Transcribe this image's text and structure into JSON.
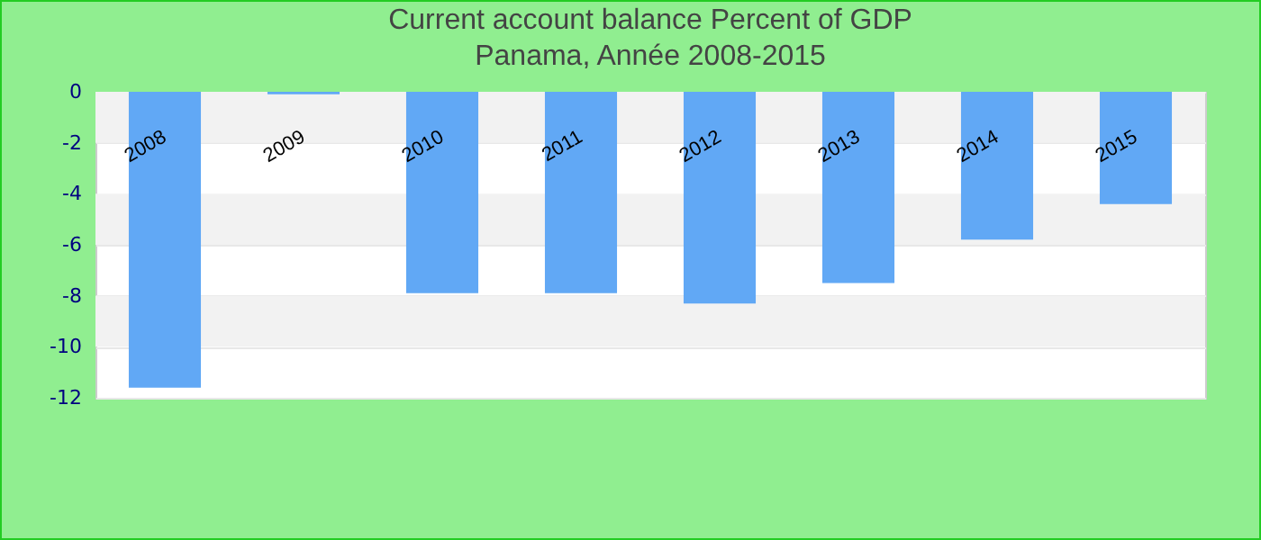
{
  "chart_data": {
    "type": "bar",
    "title": "Current account balance  Percent of GDP",
    "subtitle": "Panama, Année 2008-2015",
    "categories": [
      "2008",
      "2009",
      "2010",
      "2011",
      "2012",
      "2013",
      "2014",
      "2015"
    ],
    "values": [
      -11.6,
      -0.1,
      -7.9,
      -7.9,
      -8.3,
      -7.5,
      -5.8,
      -4.4
    ],
    "color": "#61a8f5",
    "ylim": [
      -12,
      0
    ],
    "yticks": [
      -12,
      -10,
      -8,
      -6,
      -4,
      -2,
      0
    ],
    "grid": "y"
  }
}
